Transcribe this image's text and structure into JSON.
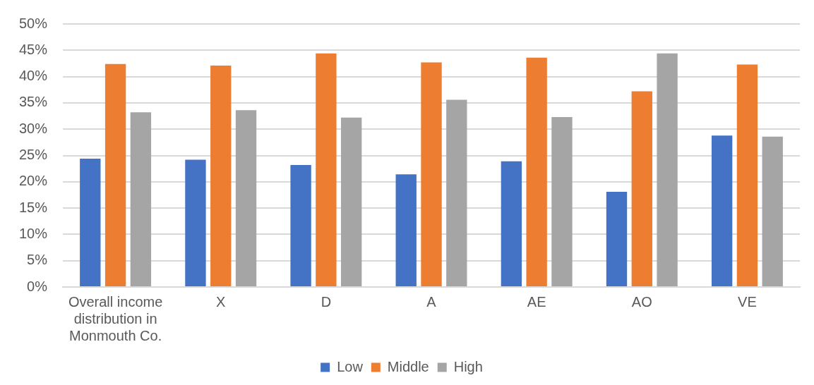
{
  "chart_data": {
    "type": "bar",
    "categories": [
      "Overall income distribution in Monmouth Co.",
      "X",
      "D",
      "A",
      "AE",
      "AO",
      "VE"
    ],
    "series": [
      {
        "name": "Low",
        "color": "#4472c4",
        "values": [
          24.4,
          24.2,
          23.2,
          21.4,
          23.9,
          18.1,
          28.8
        ]
      },
      {
        "name": "Middle",
        "color": "#ed7d31",
        "values": [
          42.4,
          42.1,
          44.4,
          42.7,
          43.6,
          37.2,
          42.3
        ]
      },
      {
        "name": "High",
        "color": "#a5a5a5",
        "values": [
          33.2,
          33.6,
          32.2,
          35.6,
          32.3,
          44.4,
          28.6
        ]
      }
    ],
    "ylim": [
      0,
      50
    ],
    "yticks": [
      {
        "value": 0,
        "label": "0%"
      },
      {
        "value": 5,
        "label": "5%"
      },
      {
        "value": 10,
        "label": "10%"
      },
      {
        "value": 15,
        "label": "15%"
      },
      {
        "value": 20,
        "label": "20%"
      },
      {
        "value": 25,
        "label": "25%"
      },
      {
        "value": 30,
        "label": "30%"
      },
      {
        "value": 35,
        "label": "35%"
      },
      {
        "value": 40,
        "label": "40%"
      },
      {
        "value": 45,
        "label": "45%"
      },
      {
        "value": 50,
        "label": "50%"
      }
    ],
    "grid": "y",
    "legend": "bottom"
  }
}
